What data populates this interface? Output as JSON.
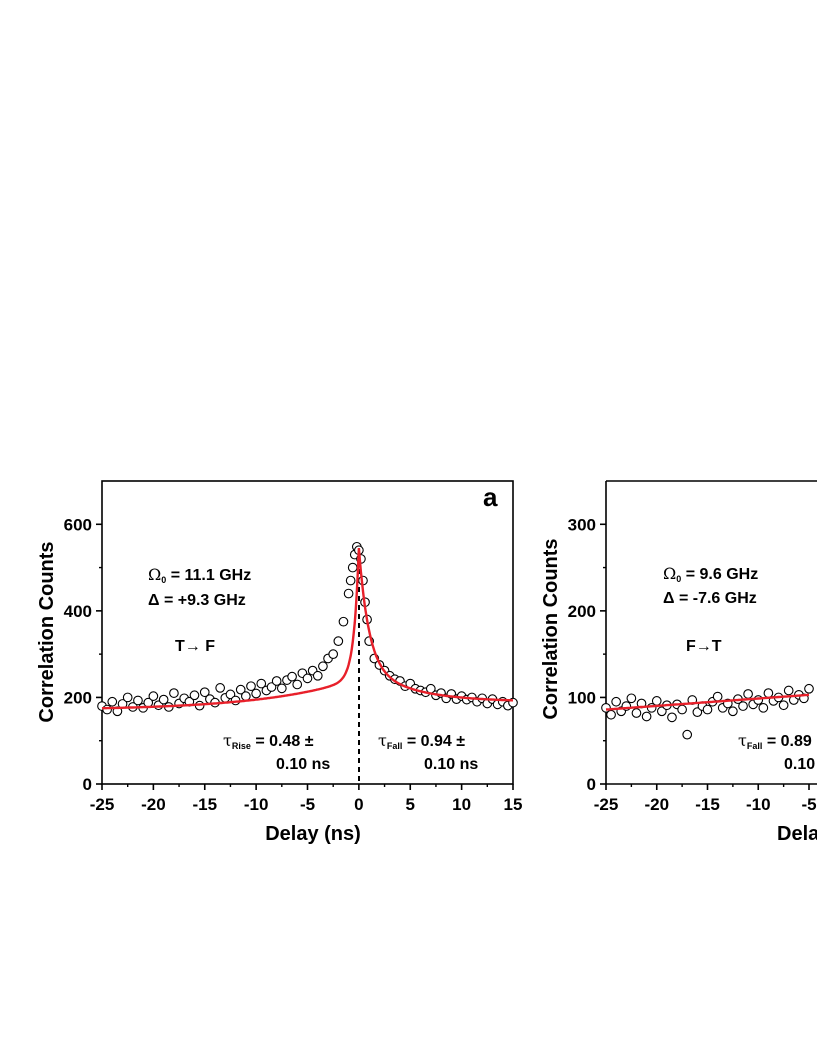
{
  "chart_data": [
    {
      "type": "scatter",
      "panel_label": "a",
      "xlabel": "Delay (ns)",
      "ylabel": "Correlation Counts",
      "xlim": [
        -25,
        15
      ],
      "ylim": [
        0,
        700
      ],
      "xticks": [
        -25,
        -20,
        -15,
        -10,
        -5,
        0,
        5,
        10,
        15
      ],
      "yticks": [
        0,
        200,
        400,
        600
      ],
      "grid": false,
      "annotations": {
        "rabi_symbol": "Ω",
        "rabi_sub": "0",
        "rabi_value": " = 11.1 GHz",
        "detuning": "Δ = +9.3 GHz",
        "transition": "T→ F",
        "tau_rise_symbol": "τ",
        "tau_rise_sub": "Rise",
        "tau_rise_line1": " = 0.48 ±",
        "tau_rise_line2": "0.10 ns",
        "tau_fall_symbol": "τ",
        "tau_fall_sub": "Fall",
        "tau_fall_line1": " = 0.94 ±",
        "tau_fall_line2": "0.10 ns"
      },
      "fit": {
        "name": "exponential fit",
        "color": "#e8202a",
        "center": 0,
        "baseline_left_at_-25": 175,
        "baseline_at_0": 245,
        "baseline_right_at_15": 190,
        "peak": 545,
        "tau_rise": 0.48,
        "tau_fall": 0.94
      },
      "measured_points": {
        "marker": "open circle",
        "x": [
          -25,
          -24.5,
          -24,
          -23.5,
          -23,
          -22.5,
          -22,
          -21.5,
          -21,
          -20.5,
          -20,
          -19.5,
          -19,
          -18.5,
          -18,
          -17.5,
          -17,
          -16.5,
          -16,
          -15.5,
          -15,
          -14.5,
          -14,
          -13.5,
          -13,
          -12.5,
          -12,
          -11.5,
          -11,
          -10.5,
          -10,
          -9.5,
          -9,
          -8.5,
          -8,
          -7.5,
          -7,
          -6.5,
          -6,
          -5.5,
          -5,
          -4.5,
          -4,
          -3.5,
          -3,
          -2.5,
          -2,
          -1.5,
          -1,
          -0.8,
          -0.6,
          -0.4,
          -0.2,
          0,
          0.2,
          0.4,
          0.6,
          0.8,
          1,
          1.5,
          2,
          2.5,
          3,
          3.5,
          4,
          4.5,
          5,
          5.5,
          6,
          6.5,
          7,
          7.5,
          8,
          8.5,
          9,
          9.5,
          10,
          10.5,
          11,
          11.5,
          12,
          12.5,
          13,
          13.5,
          14,
          14.5,
          15
        ],
        "y": [
          180,
          172,
          190,
          168,
          185,
          200,
          178,
          193,
          176,
          188,
          203,
          182,
          195,
          178,
          210,
          186,
          198,
          190,
          205,
          181,
          212,
          196,
          188,
          222,
          199,
          207,
          193,
          218,
          203,
          226,
          209,
          232,
          216,
          224,
          238,
          221,
          240,
          248,
          230,
          256,
          244,
          262,
          250,
          272,
          290,
          300,
          330,
          375,
          440,
          470,
          500,
          530,
          548,
          540,
          520,
          470,
          420,
          380,
          330,
          290,
          275,
          262,
          250,
          242,
          238,
          226,
          232,
          220,
          216,
          212,
          220,
          205,
          210,
          198,
          208,
          196,
          203,
          195,
          200,
          190,
          198,
          186,
          196,
          184,
          190,
          181,
          188
        ]
      }
    },
    {
      "type": "scatter",
      "xlabel": "Delay (ns)",
      "ylabel": "Correlation Counts",
      "xlim": [
        -25,
        15
      ],
      "ylim": [
        0,
        350
      ],
      "xticks": [
        -25,
        -20,
        -15,
        -10,
        -5
      ],
      "yticks": [
        0,
        100,
        200,
        300
      ],
      "grid": false,
      "annotations": {
        "rabi_symbol": "Ω",
        "rabi_sub": "0",
        "rabi_value": " = 9.6 GHz",
        "detuning": "Δ = -7.6 GHz",
        "transition": "F→T",
        "tau_fall_symbol": "τ",
        "tau_fall_sub": "Fall",
        "tau_fall_line1": " = 0.89",
        "tau_fall_line2": "0.10"
      },
      "fit": {
        "name": "exponential fit",
        "color": "#e8202a",
        "baseline_left_at_-25": 86,
        "baseline_at_-5": 103
      },
      "measured_points": {
        "marker": "open circle",
        "x": [
          -25,
          -24.5,
          -24,
          -23.5,
          -23,
          -22.5,
          -22,
          -21.5,
          -21,
          -20.5,
          -20,
          -19.5,
          -19,
          -18.5,
          -18,
          -17.5,
          -17,
          -16.5,
          -16,
          -15.5,
          -15,
          -14.5,
          -14,
          -13.5,
          -13,
          -12.5,
          -12,
          -11.5,
          -11,
          -10.5,
          -10,
          -9.5,
          -9,
          -8.5,
          -8,
          -7.5,
          -7,
          -6.5,
          -6,
          -5.5,
          -5
        ],
        "y": [
          88,
          80,
          95,
          84,
          90,
          99,
          82,
          93,
          78,
          88,
          96,
          84,
          91,
          77,
          92,
          86,
          57,
          97,
          83,
          90,
          86,
          95,
          101,
          88,
          93,
          84,
          98,
          90,
          104,
          92,
          97,
          88,
          105,
          96,
          100,
          91,
          108,
          97,
          103,
          99,
          110
        ]
      }
    }
  ]
}
